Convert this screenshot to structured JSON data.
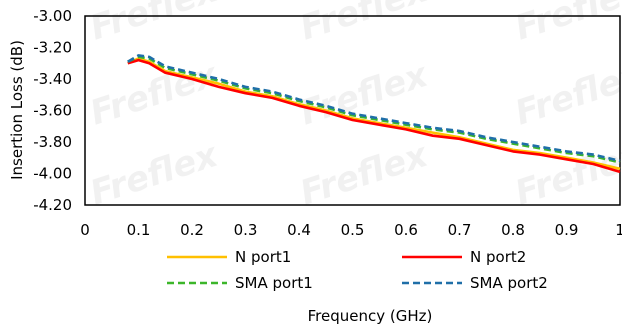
{
  "chart_data": {
    "type": "line",
    "xlabel": "Frequency (GHz)",
    "ylabel": "Insertion Loss (dB)",
    "xlim": [
      0,
      1
    ],
    "ylim": [
      -4.2,
      -3.0
    ],
    "xticks": [
      0,
      0.1,
      0.2,
      0.3,
      0.4,
      0.5,
      0.6,
      0.7,
      0.8,
      0.9,
      1
    ],
    "xtick_labels": [
      "0",
      "0.1",
      "0.2",
      "0.3",
      "0.4",
      "0.5",
      "0.6",
      "0.7",
      "0.8",
      "0.9",
      "1"
    ],
    "yticks": [
      -3.0,
      -3.2,
      -3.4,
      -3.6,
      -3.8,
      -4.0,
      -4.2
    ],
    "ytick_labels": [
      "-3.00",
      "-3.20",
      "-3.40",
      "-3.60",
      "-3.80",
      "-4.00",
      "-4.20"
    ],
    "grid": false,
    "legend_position": "bottom",
    "watermark": "Freflex",
    "x": [
      0.08,
      0.1,
      0.12,
      0.15,
      0.2,
      0.25,
      0.3,
      0.35,
      0.4,
      0.45,
      0.5,
      0.55,
      0.6,
      0.65,
      0.7,
      0.75,
      0.8,
      0.85,
      0.9,
      0.95,
      1.0
    ],
    "series": [
      {
        "name": "N port1",
        "color": "#ffc000",
        "dash": "solid",
        "values": [
          -3.3,
          -3.27,
          -3.29,
          -3.35,
          -3.39,
          -3.43,
          -3.48,
          -3.51,
          -3.56,
          -3.6,
          -3.65,
          -3.68,
          -3.71,
          -3.74,
          -3.77,
          -3.81,
          -3.85,
          -3.87,
          -3.9,
          -3.93,
          -3.97
        ]
      },
      {
        "name": "N port2",
        "color": "#ff0000",
        "dash": "solid",
        "values": [
          -3.3,
          -3.28,
          -3.3,
          -3.36,
          -3.4,
          -3.45,
          -3.49,
          -3.52,
          -3.57,
          -3.61,
          -3.66,
          -3.69,
          -3.72,
          -3.76,
          -3.78,
          -3.82,
          -3.86,
          -3.88,
          -3.91,
          -3.94,
          -3.99
        ]
      },
      {
        "name": "SMA port1",
        "color": "#3cb62a",
        "dash": "dash",
        "values": [
          -3.29,
          -3.26,
          -3.27,
          -3.33,
          -3.37,
          -3.41,
          -3.46,
          -3.49,
          -3.54,
          -3.58,
          -3.63,
          -3.66,
          -3.69,
          -3.72,
          -3.74,
          -3.78,
          -3.81,
          -3.84,
          -3.87,
          -3.89,
          -3.93
        ]
      },
      {
        "name": "SMA port2",
        "color": "#1f6fa8",
        "dash": "dash",
        "values": [
          -3.29,
          -3.25,
          -3.26,
          -3.32,
          -3.36,
          -3.4,
          -3.45,
          -3.48,
          -3.53,
          -3.57,
          -3.62,
          -3.65,
          -3.68,
          -3.71,
          -3.73,
          -3.77,
          -3.8,
          -3.83,
          -3.86,
          -3.88,
          -3.92
        ]
      }
    ]
  }
}
